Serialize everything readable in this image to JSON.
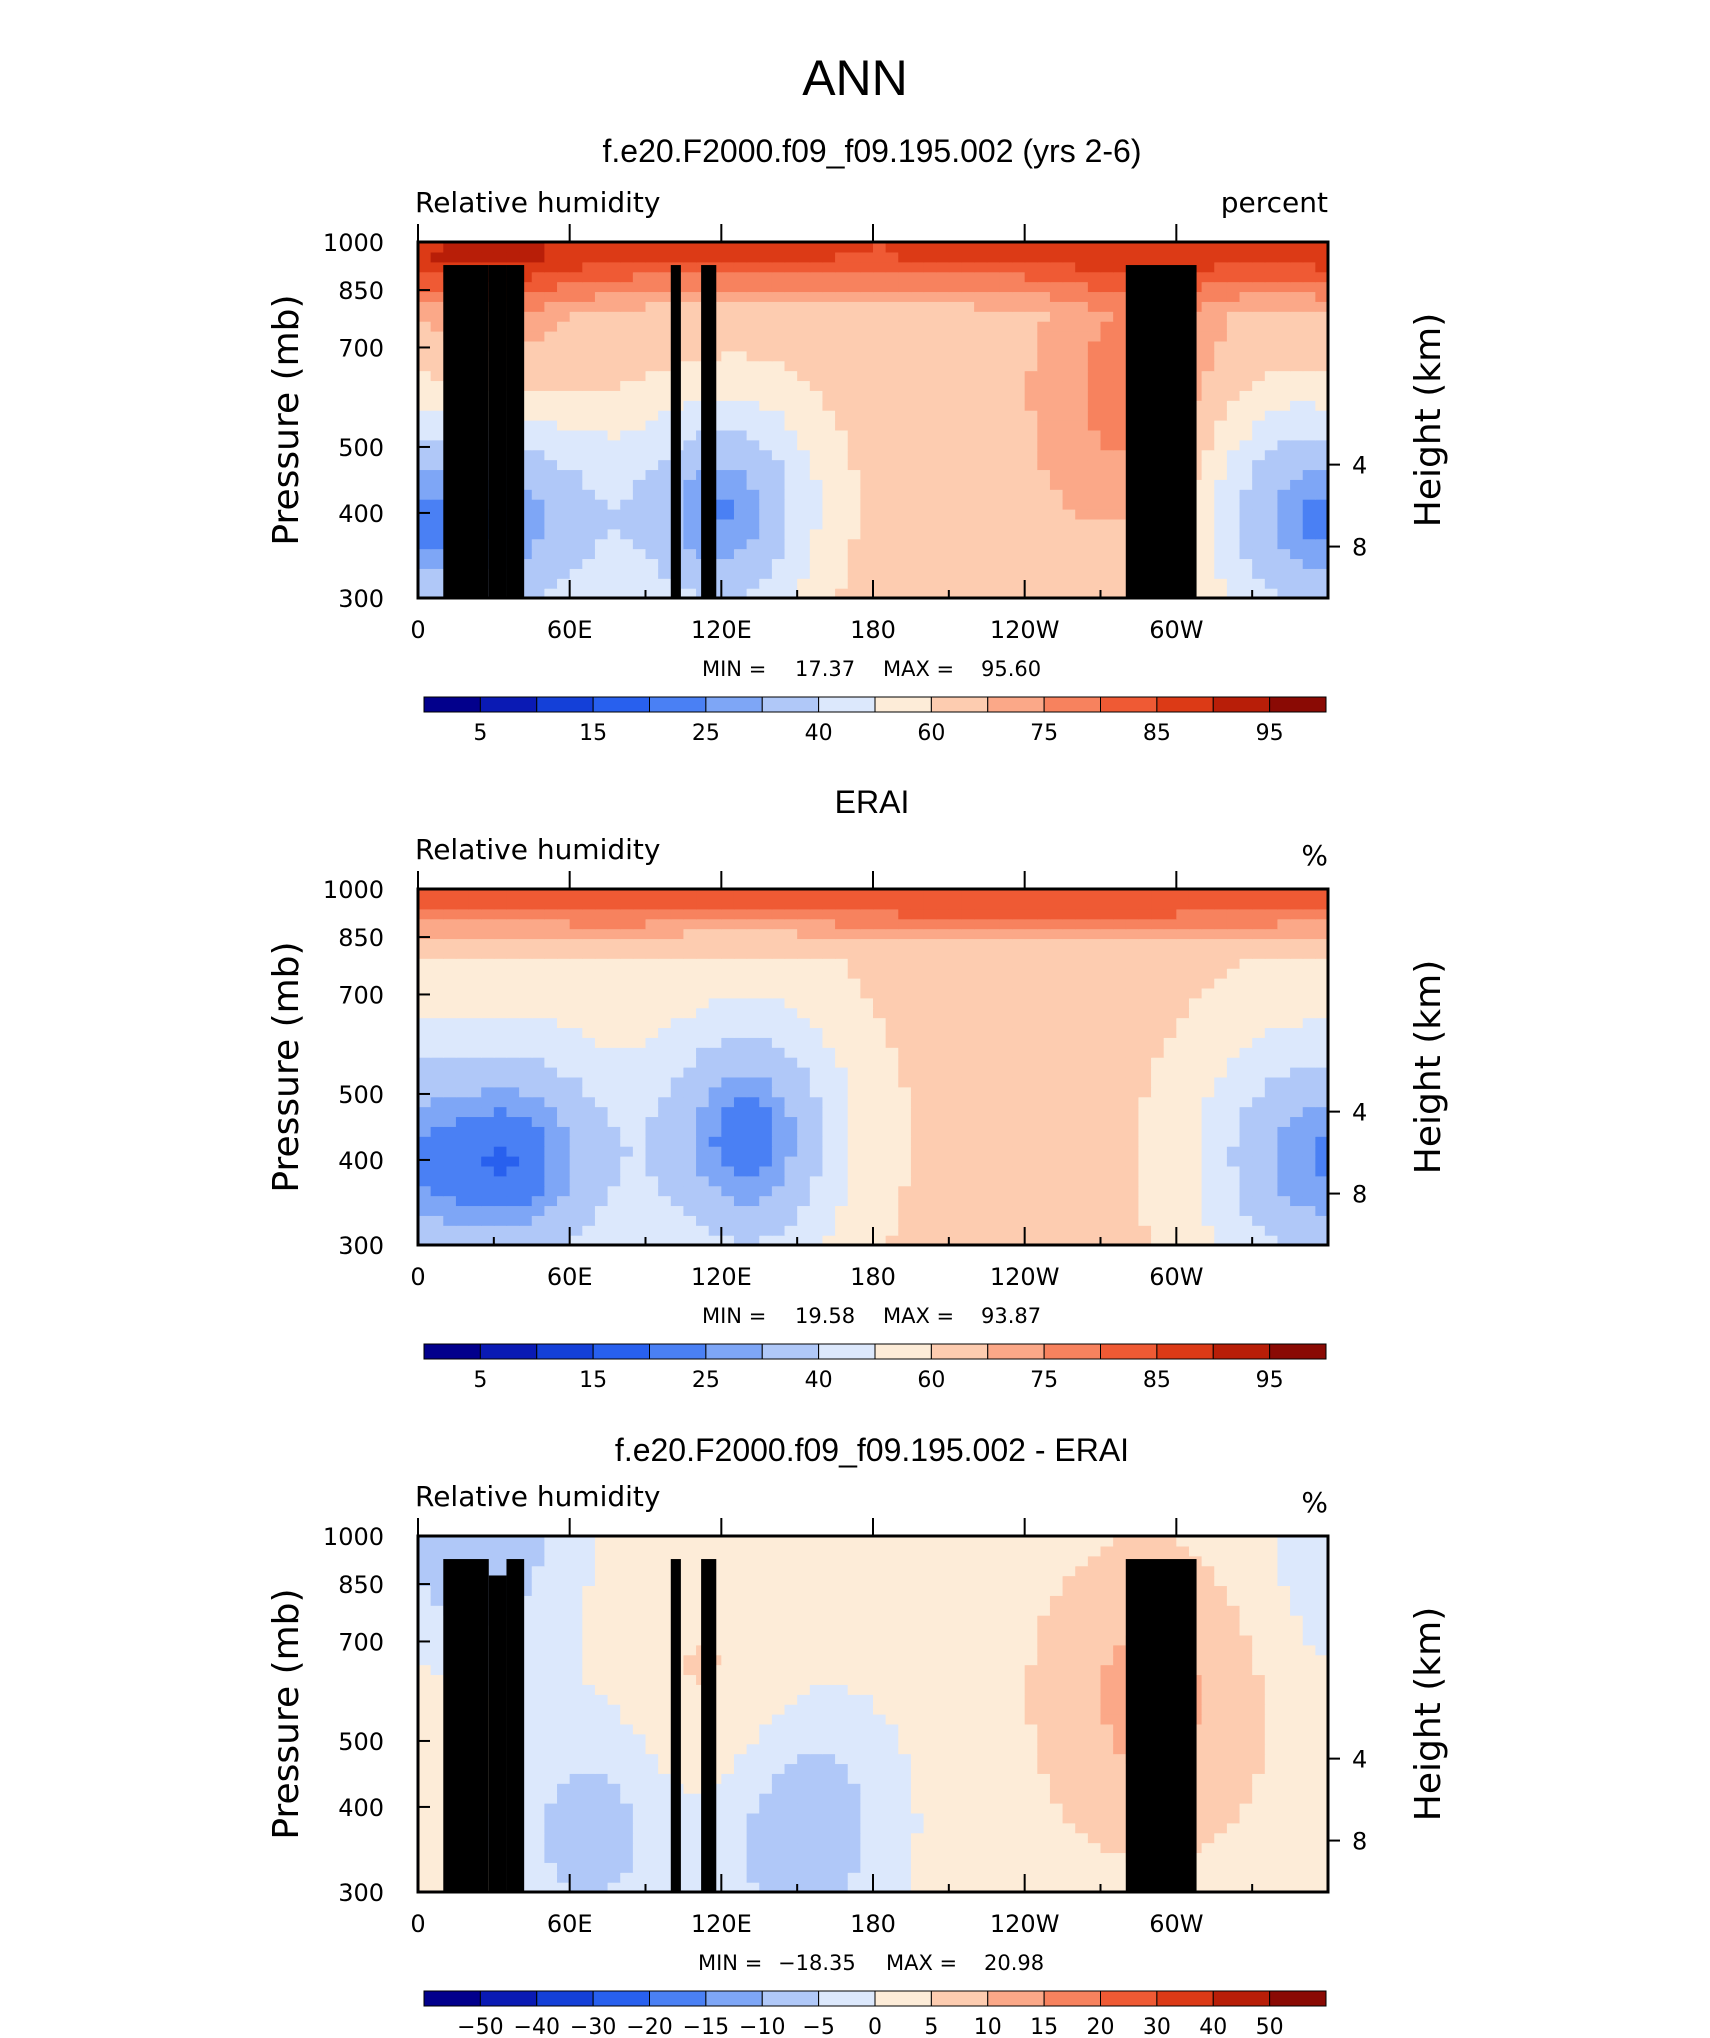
{
  "figure": {
    "season": "ANN",
    "colors": {
      "rh_scale": [
        "#02008c",
        "#0a1ab4",
        "#1440d8",
        "#2860ee",
        "#4a80f4",
        "#7ea6f6",
        "#b0c8f8",
        "#dce8fc",
        "#fdecd8",
        "#fdccb0",
        "#fba888",
        "#f7825e",
        "#ef5a34",
        "#dc3a16",
        "#b81e08",
        "#8a0a04"
      ],
      "diff_scale": [
        "#02008c",
        "#0a1ab4",
        "#1440d8",
        "#2860ee",
        "#4a80f4",
        "#7ea6f6",
        "#b0c8f8",
        "#dce8fc",
        "#fdecd8",
        "#fdccb0",
        "#fba888",
        "#f7825e",
        "#ef5a34",
        "#dc3a16",
        "#b81e08",
        "#8a0a04"
      ],
      "land_mask": "#000000"
    }
  },
  "chart_data": [
    {
      "type": "heatmap",
      "title": "f.e20.F2000.f09_f09.195.002 (yrs 2-6)",
      "left_label": "Relative humidity",
      "right_label": "percent",
      "variable": "Relative humidity",
      "units": "percent",
      "ylabel": "Pressure (mb)",
      "ylabel_right": "Height (km)",
      "yticks": [
        "300",
        "400",
        "500",
        "700",
        "850",
        "1000"
      ],
      "yticks_right": [
        "8",
        "4"
      ],
      "xticks": [
        "0",
        "60E",
        "120E",
        "180",
        "120W",
        "60W"
      ],
      "xlim": [
        0,
        360
      ],
      "ylim": [
        1000,
        300
      ],
      "min_label": "MIN =",
      "min_value": "17.37",
      "max_label": "MAX =",
      "max_value": "95.60",
      "colorbar_labels": [
        "5",
        "15",
        "25",
        "40",
        "60",
        "75",
        "85",
        "95"
      ],
      "colorbar_levels": [
        5,
        10,
        15,
        20,
        25,
        30,
        40,
        50,
        60,
        70,
        75,
        80,
        85,
        90,
        95
      ],
      "fields": {
        "base": 67,
        "features": [
          {
            "kind": "moist_boundary_layer",
            "lon": [
              0,
              360
            ],
            "p_top": 850,
            "value": 85
          },
          {
            "kind": "dry_max",
            "lon": 120,
            "p": 420,
            "value": 18
          },
          {
            "kind": "dry_max",
            "lon": 345,
            "p": 400,
            "value": 30
          },
          {
            "kind": "dry_max",
            "lon": 40,
            "p": 400,
            "value": 30
          },
          {
            "kind": "moist_max",
            "lon": 28,
            "p": 700,
            "value": 80
          },
          {
            "kind": "moist_max",
            "lon": 115,
            "p": 550,
            "value": 78
          },
          {
            "kind": "moist_max",
            "lon": 290,
            "p": 600,
            "value": 80
          }
        ]
      },
      "land_lon_ranges": [
        [
          10,
          28
        ],
        [
          28,
          35
        ],
        [
          35,
          42
        ],
        [
          100,
          104
        ],
        [
          112,
          118
        ],
        [
          280,
          308
        ]
      ],
      "land_top_p": [
        925,
        925,
        925,
        925,
        925,
        925
      ]
    },
    {
      "type": "heatmap",
      "title": "ERAI",
      "left_label": "Relative humidity",
      "right_label": "%",
      "variable": "Relative humidity",
      "units": "%",
      "ylabel": "Pressure (mb)",
      "ylabel_right": "Height (km)",
      "yticks": [
        "300",
        "400",
        "500",
        "700",
        "850",
        "1000"
      ],
      "yticks_right": [
        "8",
        "4"
      ],
      "xticks": [
        "0",
        "60E",
        "120E",
        "180",
        "120W",
        "60W"
      ],
      "xlim": [
        0,
        360
      ],
      "ylim": [
        1000,
        300
      ],
      "min_label": "MIN =",
      "min_value": "19.58",
      "max_label": "MAX =",
      "max_value": "93.87",
      "colorbar_labels": [
        "5",
        "15",
        "25",
        "40",
        "60",
        "75",
        "85",
        "95"
      ],
      "colorbar_levels": [
        5,
        10,
        15,
        20,
        25,
        30,
        40,
        50,
        60,
        70,
        75,
        80,
        85,
        90,
        95
      ],
      "fields": {
        "base": 63,
        "features": [
          {
            "kind": "moist_boundary_layer",
            "lon": [
              0,
              360
            ],
            "p_top": 850,
            "value": 84
          },
          {
            "kind": "dry_max",
            "lon": 130,
            "p": 430,
            "value": 22
          },
          {
            "kind": "dry_max",
            "lon": 345,
            "p": 400,
            "value": 32
          },
          {
            "kind": "dry_max",
            "lon": 42,
            "p": 400,
            "value": 25
          }
        ]
      },
      "land_lon_ranges": [],
      "land_top_p": []
    },
    {
      "type": "heatmap",
      "title": "f.e20.F2000.f09_f09.195.002 - ERAI",
      "left_label": "Relative humidity",
      "right_label": "%",
      "variable": "Relative humidity difference",
      "units": "%",
      "ylabel": "Pressure (mb)",
      "ylabel_right": "Height (km)",
      "yticks": [
        "300",
        "400",
        "500",
        "700",
        "850",
        "1000"
      ],
      "yticks_right": [
        "8",
        "4"
      ],
      "xticks": [
        "0",
        "60E",
        "120E",
        "180",
        "120W",
        "60W"
      ],
      "xlim": [
        0,
        360
      ],
      "ylim": [
        1000,
        300
      ],
      "min_label": "MIN =",
      "min_value": "−18.35",
      "max_label": "MAX =",
      "max_value": "20.98",
      "colorbar_labels": [
        "−50",
        "−40",
        "−30",
        "−20",
        "−15",
        "−10",
        "−5",
        "0",
        "5",
        "10",
        "15",
        "20",
        "30",
        "40",
        "50"
      ],
      "colorbar_levels": [
        -50,
        -40,
        -30,
        -20,
        -15,
        -10,
        -5,
        0,
        5,
        10,
        15,
        20,
        30,
        40,
        50
      ],
      "fields": {
        "base": 3,
        "features": [
          {
            "kind": "positive",
            "lon": 290,
            "p": 580,
            "value": 12
          },
          {
            "kind": "positive",
            "lon": 115,
            "p": 500,
            "value": 9
          },
          {
            "kind": "positive",
            "lon": 30,
            "p": 700,
            "value": 8
          },
          {
            "kind": "negative",
            "lon": 150,
            "p": 380,
            "value": -10
          },
          {
            "kind": "negative",
            "lon": 70,
            "p": 380,
            "value": -8
          },
          {
            "kind": "negative",
            "lon": 25,
            "p": 900,
            "value": -12
          }
        ]
      },
      "land_lon_ranges": [
        [
          10,
          28
        ],
        [
          28,
          35
        ],
        [
          35,
          42
        ],
        [
          100,
          104
        ],
        [
          112,
          118
        ],
        [
          280,
          308
        ]
      ],
      "land_top_p": [
        925,
        875,
        925,
        925,
        925,
        925
      ]
    }
  ]
}
